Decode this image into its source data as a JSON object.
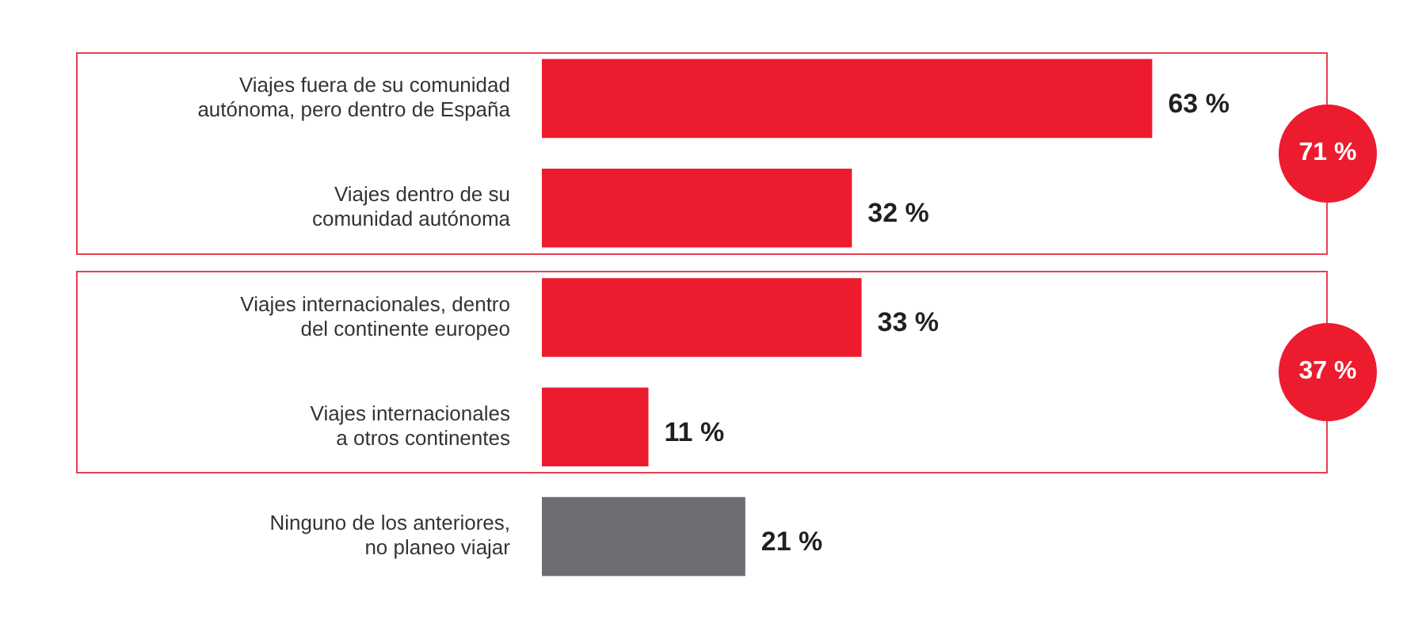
{
  "chart_data": {
    "type": "bar",
    "orientation": "horizontal",
    "categories": [
      "Viajes fuera de su comunidad autónoma, pero dentro de España",
      "Viajes dentro de su comunidad autónoma",
      "Viajes internacionales, dentro del continente europeo",
      "Viajes internacionales a otros continentes",
      "Ninguno de los anteriores, no planeo viajar"
    ],
    "values": [
      63,
      32,
      33,
      11,
      21
    ],
    "value_labels": [
      "63 %",
      "32 %",
      "33 %",
      "11 %",
      "21 %"
    ],
    "colors": [
      "#ed1b2e",
      "#ed1b2e",
      "#ed1b2e",
      "#ed1b2e",
      "#6d6e71"
    ],
    "annotations": [
      "71 %",
      "37 %"
    ],
    "grid": false,
    "legend": false
  }
}
